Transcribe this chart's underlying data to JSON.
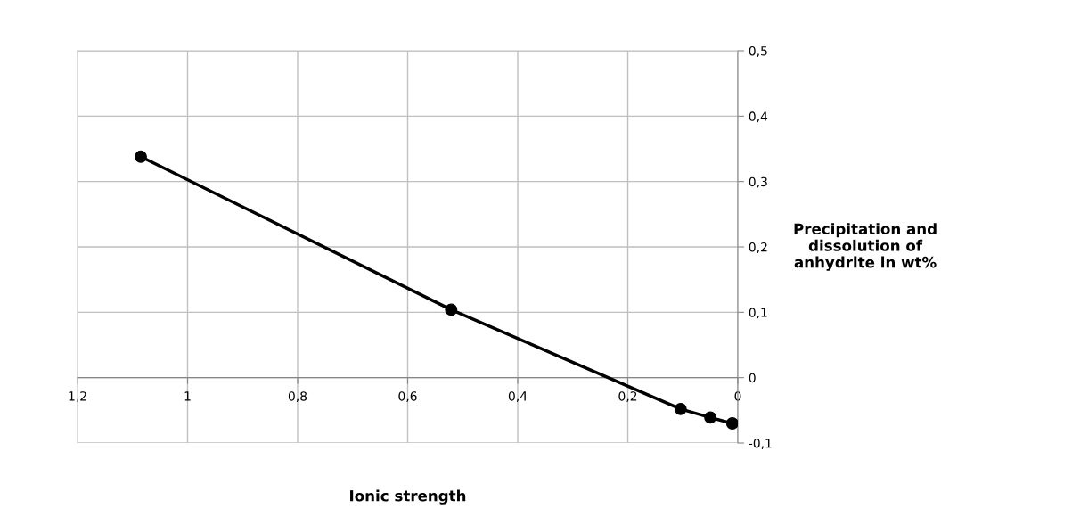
{
  "chart_data": {
    "type": "line",
    "xlabel": "Ionic strength",
    "ylabel": "Precipitation and\ndissolution of\nanhydrite in wt%",
    "series": [
      {
        "color": "#000000",
        "x": [
          1.085,
          0.521,
          0.104,
          0.05,
          0.01
        ],
        "values": [
          0.338,
          0.104,
          -0.048,
          -0.061,
          -0.07
        ]
      }
    ],
    "xlim": [
      1.2,
      0
    ],
    "xticks": [
      {
        "value": 1.2,
        "label": "1,2"
      },
      {
        "value": 1.0,
        "label": "1"
      },
      {
        "value": 0.8,
        "label": "0,8"
      },
      {
        "value": 0.6,
        "label": "0,6"
      },
      {
        "value": 0.4,
        "label": "0,4"
      },
      {
        "value": 0.2,
        "label": "0,2"
      },
      {
        "value": 0,
        "label": "0"
      }
    ],
    "ylim": [
      -0.1,
      0.5
    ],
    "yticks": [
      {
        "value": -0.1,
        "label": "-0,1"
      },
      {
        "value": 0,
        "label": "0"
      },
      {
        "value": 0.1,
        "label": "0,1"
      },
      {
        "value": 0.2,
        "label": "0,2"
      },
      {
        "value": 0.3,
        "label": "0,3"
      },
      {
        "value": 0.4,
        "label": "0,4"
      },
      {
        "value": 0.5,
        "label": "0,5"
      }
    ],
    "grid": true,
    "marker": "circle",
    "line_style": "solid"
  }
}
